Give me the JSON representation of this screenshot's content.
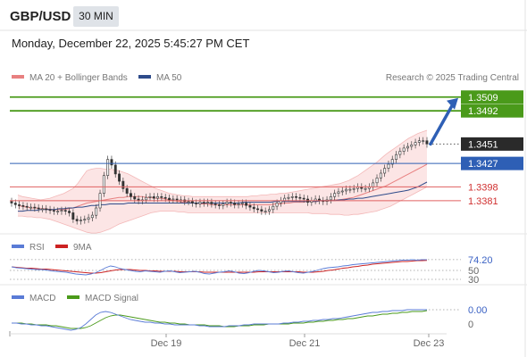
{
  "header": {
    "symbol": "GBP/USD",
    "timeframe": "30 MIN",
    "datetime": "Monday, December 22, 2025 5:45:27 PM CET"
  },
  "legend": {
    "bollinger": "MA 20 + Bollinger Bands",
    "ma50": "MA 50",
    "credit": "Research © 2025 Trading Central"
  },
  "colors": {
    "resistance": "#4a9a1a",
    "pivot": "#2e5fb5",
    "support": "#e06060",
    "price_badge": "#2a2a2a",
    "ma20": "#e88080",
    "ma50": "#2e4b8a",
    "band_fill": "#fce0e0",
    "arrow": "#2e5fb5",
    "rsi": "#5a7bd6",
    "rsi_ma": "#cc2222",
    "macd": "#5a7bd6",
    "macd_signal": "#4a9a1a"
  },
  "chart_data": [
    {
      "type": "line",
      "subtype": "candlestick",
      "title": "GBP/USD",
      "x_ticks": [
        "Dec 19",
        "Dec 21",
        "Dec 23"
      ],
      "ylim": [
        1.334,
        1.3522
      ],
      "levels": [
        {
          "value": 1.3509,
          "label": "1.3509",
          "kind": "resistance"
        },
        {
          "value": 1.3492,
          "label": "1.3492",
          "kind": "resistance"
        },
        {
          "value": 1.3451,
          "label": "1.3451",
          "kind": "last"
        },
        {
          "value": 1.3427,
          "label": "1.3427",
          "kind": "pivot"
        },
        {
          "value": 1.3398,
          "label": "1.3398",
          "kind": "support"
        },
        {
          "value": 1.3381,
          "label": "1.3381",
          "kind": "support"
        }
      ],
      "close": [
        1.3378,
        1.3376,
        1.3375,
        1.3374,
        1.3373,
        1.3373,
        1.3372,
        1.3371,
        1.3371,
        1.337,
        1.3369,
        1.3368,
        1.3368,
        1.3369,
        1.3368,
        1.3366,
        1.3358,
        1.3356,
        1.3357,
        1.3358,
        1.336,
        1.3363,
        1.3372,
        1.339,
        1.3412,
        1.3432,
        1.3425,
        1.3414,
        1.3405,
        1.3396,
        1.339,
        1.3386,
        1.3383,
        1.3381,
        1.3382,
        1.3385,
        1.3386,
        1.3384,
        1.3386,
        1.3385,
        1.3384,
        1.3382,
        1.3383,
        1.3382,
        1.3382,
        1.338,
        1.338,
        1.3378,
        1.3377,
        1.3379,
        1.3378,
        1.3379,
        1.3377,
        1.3376,
        1.3375,
        1.3377,
        1.3379,
        1.3378,
        1.3376,
        1.3377,
        1.3378,
        1.3375,
        1.3373,
        1.3371,
        1.337,
        1.3368,
        1.3368,
        1.337,
        1.3374,
        1.3378,
        1.3381,
        1.3384,
        1.3385,
        1.3386,
        1.3385,
        1.3384,
        1.3383,
        1.3379,
        1.3381,
        1.3383,
        1.3381,
        1.338,
        1.3382,
        1.3386,
        1.339,
        1.3392,
        1.3393,
        1.3395,
        1.3395,
        1.3396,
        1.3398,
        1.3396,
        1.3396,
        1.3398,
        1.3403,
        1.3409,
        1.3415,
        1.3421,
        1.3426,
        1.3432,
        1.3438,
        1.3442,
        1.3446,
        1.3448,
        1.345,
        1.3453,
        1.3455,
        1.3455,
        1.3451
      ],
      "ma20": [
        1.3375,
        1.3374,
        1.3373,
        1.3372,
        1.3372,
        1.3371,
        1.3371,
        1.337,
        1.337,
        1.337,
        1.337,
        1.3371,
        1.3372,
        1.3374,
        1.3376,
        1.3378,
        1.3379,
        1.338,
        1.3381,
        1.3382,
        1.3383,
        1.3384,
        1.3385,
        1.3385,
        1.3386,
        1.3386,
        1.3386,
        1.3386,
        1.3385,
        1.3385,
        1.3384,
        1.3384,
        1.3383,
        1.3382,
        1.3381,
        1.338,
        1.3379,
        1.3379,
        1.3378,
        1.3378,
        1.3377,
        1.3377,
        1.3376,
        1.3376,
        1.3376,
        1.3376,
        1.3376,
        1.3376,
        1.3376,
        1.3376,
        1.3376,
        1.3376,
        1.3376,
        1.3376,
        1.3376,
        1.3376,
        1.3377,
        1.3377,
        1.3378,
        1.3378,
        1.3379,
        1.3379,
        1.3379,
        1.338,
        1.338,
        1.338,
        1.3381,
        1.3381,
        1.3381,
        1.3382,
        1.3382,
        1.3383,
        1.3384,
        1.3385,
        1.3387,
        1.3389,
        1.3391,
        1.3393,
        1.3395,
        1.3397,
        1.3399,
        1.3402,
        1.3405,
        1.3408,
        1.3411,
        1.3414,
        1.3417,
        1.342,
        1.3423,
        1.3426
      ],
      "ma50": [
        1.3368,
        1.3368,
        1.3369,
        1.3369,
        1.3369,
        1.337,
        1.337,
        1.337,
        1.337,
        1.3371,
        1.3371,
        1.3372,
        1.3372,
        1.3373,
        1.3373,
        1.3374,
        1.3375,
        1.3375,
        1.3376,
        1.3376,
        1.3377,
        1.3377,
        1.3377,
        1.3377,
        1.3378,
        1.3378,
        1.3378,
        1.3378,
        1.3378,
        1.3378,
        1.3378,
        1.3378,
        1.3378,
        1.3378,
        1.3378,
        1.3378,
        1.3378,
        1.3378,
        1.3378,
        1.3378,
        1.3378,
        1.3378,
        1.3378,
        1.3378,
        1.3378,
        1.3378,
        1.3378,
        1.3378,
        1.3378,
        1.3379,
        1.3379,
        1.3379,
        1.3379,
        1.3379,
        1.3379,
        1.3379,
        1.338,
        1.338,
        1.338,
        1.338,
        1.338,
        1.338,
        1.338,
        1.338,
        1.338,
        1.338,
        1.3381,
        1.3381,
        1.3381,
        1.3381,
        1.3382,
        1.3382,
        1.3383,
        1.3383,
        1.3384,
        1.3384,
        1.3385,
        1.3386,
        1.3387,
        1.3388,
        1.3389,
        1.339,
        1.3391,
        1.3392,
        1.3393,
        1.3394,
        1.3396,
        1.3398,
        1.3401,
        1.3404
      ],
      "band_upper": [
        1.3388,
        1.3386,
        1.3385,
        1.3384,
        1.3383,
        1.3382,
        1.3383,
        1.3384,
        1.3386,
        1.3388,
        1.339,
        1.3393,
        1.3396,
        1.3402,
        1.341,
        1.3418,
        1.342,
        1.3421,
        1.3421,
        1.342,
        1.342,
        1.3419,
        1.3418,
        1.3416,
        1.3414,
        1.3411,
        1.3408,
        1.3405,
        1.3402,
        1.3399,
        1.3396,
        1.3394,
        1.3392,
        1.339,
        1.3389,
        1.3388,
        1.3387,
        1.3387,
        1.3386,
        1.3386,
        1.3386,
        1.3386,
        1.3386,
        1.3386,
        1.3386,
        1.3386,
        1.3386,
        1.3386,
        1.3386,
        1.3386,
        1.3386,
        1.3387,
        1.3387,
        1.3388,
        1.3388,
        1.3389,
        1.3389,
        1.339,
        1.339,
        1.3391,
        1.3392,
        1.3393,
        1.3394,
        1.3395,
        1.3396,
        1.3397,
        1.3398,
        1.3399,
        1.34,
        1.3401,
        1.3402,
        1.3404,
        1.3406,
        1.3409,
        1.3412,
        1.3416,
        1.342,
        1.3424,
        1.3428,
        1.3433,
        1.3438,
        1.3442,
        1.3446,
        1.345,
        1.3454,
        1.3458,
        1.3461,
        1.3464,
        1.3466,
        1.3468
      ],
      "band_lower": [
        1.3362,
        1.3362,
        1.3361,
        1.3361,
        1.336,
        1.336,
        1.3359,
        1.3358,
        1.3356,
        1.3354,
        1.3352,
        1.335,
        1.3348,
        1.3346,
        1.3344,
        1.3342,
        1.3341,
        1.3341,
        1.3342,
        1.3344,
        1.3346,
        1.3349,
        1.3352,
        1.3354,
        1.3356,
        1.3358,
        1.336,
        1.3362,
        1.3364,
        1.3366,
        1.3367,
        1.3368,
        1.3368,
        1.3368,
        1.3368,
        1.3367,
        1.3367,
        1.3366,
        1.3366,
        1.3366,
        1.3366,
        1.3366,
        1.3366,
        1.3366,
        1.3366,
        1.3366,
        1.3366,
        1.3366,
        1.3366,
        1.3366,
        1.3366,
        1.3366,
        1.3366,
        1.3366,
        1.3366,
        1.3366,
        1.3366,
        1.3366,
        1.3366,
        1.3366,
        1.3366,
        1.3366,
        1.3366,
        1.3366,
        1.3365,
        1.3365,
        1.3365,
        1.3365,
        1.3364,
        1.3364,
        1.3364,
        1.3363,
        1.3363,
        1.3364,
        1.3364,
        1.3365,
        1.3366,
        1.3367,
        1.3368,
        1.337,
        1.3372,
        1.3374,
        1.3377,
        1.338,
        1.3383,
        1.3386,
        1.3389,
        1.3392,
        1.3395,
        1.3398
      ]
    },
    {
      "type": "line",
      "title": "RSI",
      "series": [
        {
          "name": "RSI",
          "values": [
            58,
            56,
            55,
            54,
            53,
            52,
            52,
            51,
            49,
            48,
            47,
            46,
            44,
            42,
            41,
            40,
            42,
            45,
            50,
            56,
            60,
            58,
            54,
            52,
            50,
            48,
            47,
            49,
            48,
            47,
            46,
            48,
            49,
            47,
            45,
            46,
            47,
            48,
            46,
            43,
            42,
            44,
            46,
            47,
            49,
            47,
            44,
            43,
            45,
            48,
            50,
            49,
            47,
            45,
            46,
            48,
            49,
            47,
            45,
            44,
            46,
            48,
            51,
            54,
            56,
            57,
            58,
            60,
            61,
            63,
            64,
            65,
            66,
            67,
            68,
            69,
            70,
            71,
            72,
            73,
            73,
            74,
            73,
            74,
            74.2
          ]
        },
        {
          "name": "9MA",
          "values": [
            58,
            57,
            56,
            55,
            55,
            54,
            53,
            53,
            52,
            51,
            50,
            49,
            48,
            47,
            46,
            45,
            44,
            44,
            45,
            47,
            49,
            51,
            52,
            52,
            52,
            51,
            50,
            50,
            49,
            49,
            48,
            48,
            48,
            48,
            47,
            47,
            47,
            47,
            47,
            46,
            46,
            46,
            46,
            46,
            46,
            46,
            46,
            46,
            46,
            46,
            47,
            47,
            47,
            47,
            47,
            47,
            47,
            47,
            47,
            46,
            46,
            46,
            47,
            48,
            50,
            51,
            53,
            55,
            56,
            58,
            59,
            61,
            62,
            64,
            65,
            66,
            67,
            68,
            69,
            70,
            70,
            71,
            72,
            72,
            72.5
          ]
        }
      ],
      "levels": [
        {
          "value": 74.2,
          "label": "74.20"
        },
        {
          "value": 50,
          "label": "50"
        },
        {
          "value": 30,
          "label": "30"
        }
      ],
      "ylim": [
        20,
        90
      ]
    },
    {
      "type": "line",
      "title": "MACD",
      "series": [
        {
          "name": "MACD",
          "values": [
            0.0001,
            0.0001,
            0,
            0,
            -0.0001,
            -0.0001,
            -0.0002,
            -0.0002,
            -0.0003,
            -0.0004,
            -0.0005,
            -0.0006,
            -0.0007,
            -0.0006,
            -0.0004,
            0,
            0.0005,
            0.001,
            0.0013,
            0.0014,
            0.0013,
            0.0011,
            0.0009,
            0.0007,
            0.0005,
            0.0004,
            0.0003,
            0.0002,
            0.0002,
            0.0001,
            0.0001,
            0,
            0,
            -0.0001,
            -0.0001,
            -0.0001,
            -0.0001,
            -0.0001,
            -0.0002,
            -0.0002,
            -0.0003,
            -0.0003,
            -0.0003,
            -0.0003,
            -0.0002,
            -0.0002,
            -0.0002,
            -0.0001,
            -0.0001,
            0,
            0,
            0,
            0,
            0,
            0,
            0.0001,
            0.0001,
            0.0002,
            0.0002,
            0.0003,
            0.0003,
            0.0004,
            0.0004,
            0.0005,
            0.0005,
            0.0006,
            0.0006,
            0.0007,
            0.0008,
            0.0009,
            0.001,
            0.0011,
            0.0012,
            0.0013,
            0.0013,
            0.0014,
            0.0014,
            0.0015,
            0.0015,
            0.0015,
            0.0016,
            0.0016,
            0.0016,
            0.0016,
            0.0016
          ]
        },
        {
          "name": "MACD Signal",
          "values": [
            0.0001,
            0.0001,
            0.0001,
            0,
            0,
            -0.0001,
            -0.0001,
            -0.0001,
            -0.0002,
            -0.0002,
            -0.0003,
            -0.0004,
            -0.0005,
            -0.0005,
            -0.0005,
            -0.0004,
            -0.0002,
            0.0001,
            0.0004,
            0.0007,
            0.0009,
            0.001,
            0.001,
            0.0009,
            0.0008,
            0.0007,
            0.0006,
            0.0005,
            0.0004,
            0.0003,
            0.0002,
            0.0002,
            0.0001,
            0.0001,
            0,
            0,
            -0.0001,
            -0.0001,
            -0.0001,
            -0.0001,
            -0.0002,
            -0.0002,
            -0.0002,
            -0.0003,
            -0.0003,
            -0.0003,
            -0.0002,
            -0.0002,
            -0.0002,
            -0.0001,
            -0.0001,
            -0.0001,
            0,
            0,
            0,
            0,
            0,
            0.0001,
            0.0001,
            0.0001,
            0.0002,
            0.0002,
            0.0003,
            0.0003,
            0.0004,
            0.0004,
            0.0005,
            0.0005,
            0.0006,
            0.0006,
            0.0007,
            0.0008,
            0.0009,
            0.0009,
            0.001,
            0.0011,
            0.0011,
            0.0012,
            0.0012,
            0.0013,
            0.0013,
            0.0014,
            0.0014,
            0.0014,
            0.0015
          ]
        }
      ],
      "levels": [
        {
          "value": 0,
          "label": "0.00"
        }
      ],
      "ylim": [
        -0.0009,
        0.0021
      ]
    }
  ]
}
